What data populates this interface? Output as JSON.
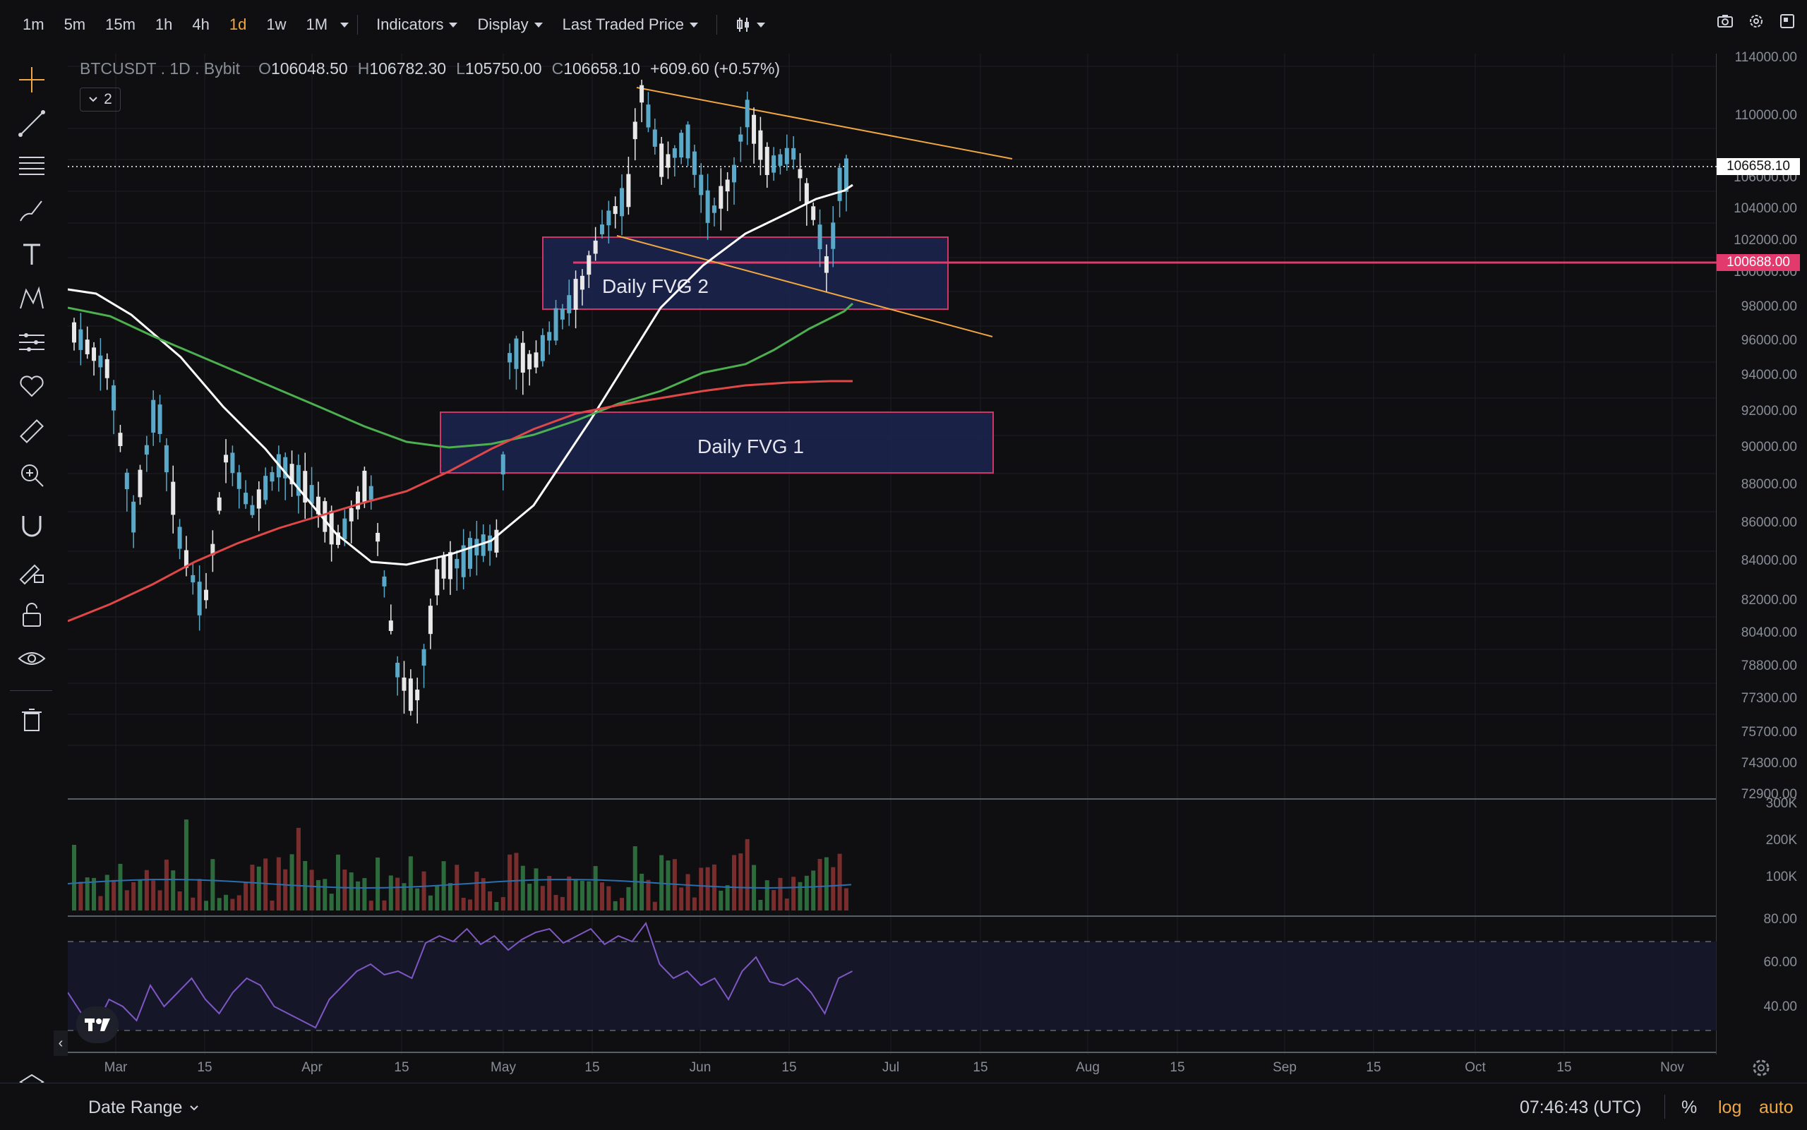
{
  "toolbar": {
    "timeframes": [
      "1m",
      "5m",
      "15m",
      "1h",
      "4h",
      "1d",
      "1w",
      "1M"
    ],
    "active_timeframe": "1d",
    "indicators_label": "Indicators",
    "display_label": "Display",
    "price_source_label": "Last Traded Price"
  },
  "legend": {
    "symbol": "BTCUSDT . 1D . Bybit",
    "o_key": "O",
    "o": "106048.50",
    "h_key": "H",
    "h": "106782.30",
    "l_key": "L",
    "l": "105750.00",
    "c_key": "C",
    "c": "106658.10",
    "change": "+609.60 (+0.57%)",
    "collapsed_count": "2"
  },
  "annotations": {
    "fvg2_label": "Daily FVG 2",
    "fvg1_label": "Daily FVG 1"
  },
  "price_axis": {
    "labels": [
      "114000.00",
      "110000.00",
      "106000.00",
      "104000.00",
      "102000.00",
      "100000.00",
      "98000.00",
      "96000.00",
      "94000.00",
      "92000.00",
      "90000.00",
      "88000.00",
      "86000.00",
      "84000.00",
      "82000.00",
      "80400.00",
      "78800.00",
      "77300.00",
      "75700.00",
      "74300.00",
      "72900.00"
    ],
    "last_price": "106658.10",
    "level_price": "100688.00",
    "volume_labels": [
      "300K",
      "200K",
      "100K"
    ],
    "rsi_labels": [
      "80.00",
      "60.00",
      "40.00"
    ]
  },
  "time_axis": {
    "labels": [
      "Mar",
      "15",
      "Apr",
      "15",
      "May",
      "15",
      "Jun",
      "15",
      "Jul",
      "15",
      "Aug",
      "15",
      "Sep",
      "15",
      "Oct",
      "15",
      "Nov"
    ]
  },
  "bottom": {
    "date_range_label": "Date Range",
    "clock": "07:46:43 (UTC)",
    "percent_label": "%",
    "log_label": "log",
    "auto_label": "auto"
  },
  "colors": {
    "up": "#e8e8e8",
    "down": "#5aa9c8",
    "sma_white": "#ffffff",
    "sma_green": "#4caf50",
    "sma_red": "#e04848",
    "trendline": "#f0a742",
    "fvg_fill": "#1b2550",
    "fvg_border": "#d0356a",
    "level_line": "#e23a6c",
    "rsi_line": "#7e57c2",
    "accent": "#f0a742"
  },
  "icons": [
    "crosshair-icon",
    "trendline-icon",
    "fib-icon",
    "brush-icon",
    "text-icon",
    "pattern-icon",
    "forecast-icon",
    "heart-icon",
    "ruler-icon",
    "zoom-icon",
    "magnet-icon",
    "lock-draw-icon",
    "unlock-icon",
    "eye-icon",
    "trash-icon",
    "layers-icon",
    "camera-icon",
    "settings-icon",
    "fullscreen-icon",
    "candle-type-icon",
    "tv-logo-icon",
    "gear-icon"
  ]
}
